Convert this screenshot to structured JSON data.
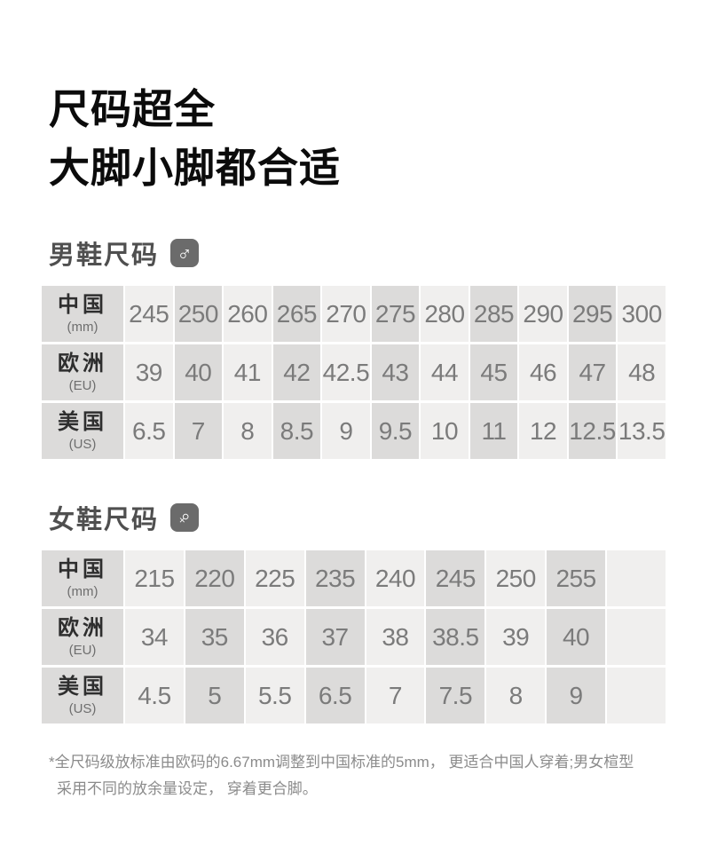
{
  "header": {
    "title_line1": "尺码超全",
    "title_line2": "大脚小脚都合适"
  },
  "colors": {
    "cell_light": "#f0efee",
    "cell_dark": "#dcdbda",
    "label_bg": "#dcdbda",
    "badge_bg": "#6b6b6b",
    "number_text": "#7b7b7b",
    "title_text": "#0b0b0b",
    "section_text": "#4f4f4f",
    "footnote_text": "#8b8b8b"
  },
  "sections": [
    {
      "id": "men",
      "heading": "男鞋尺码",
      "icon": "male-icon",
      "icon_glyph": "♂",
      "table": {
        "row_labels": [
          {
            "main": "中国",
            "sub": "(mm)"
          },
          {
            "main": "欧洲",
            "sub": "(EU)"
          },
          {
            "main": "美国",
            "sub": "(US)"
          }
        ],
        "rows": [
          [
            "245",
            "250",
            "260",
            "265",
            "270",
            "275",
            "280",
            "285",
            "290",
            "295",
            "300"
          ],
          [
            "39",
            "40",
            "41",
            "42",
            "42.5",
            "43",
            "44",
            "45",
            "46",
            "47",
            "48"
          ],
          [
            "6.5",
            "7",
            "8",
            "8.5",
            "9",
            "9.5",
            "10",
            "11",
            "12",
            "12.5",
            "13.5"
          ]
        ]
      }
    },
    {
      "id": "women",
      "heading": "女鞋尺码",
      "icon": "female-icon",
      "icon_glyph": "♀",
      "table": {
        "row_labels": [
          {
            "main": "中国",
            "sub": "(mm)"
          },
          {
            "main": "欧洲",
            "sub": "(EU)"
          },
          {
            "main": "美国",
            "sub": "(US)"
          }
        ],
        "rows": [
          [
            "215",
            "220",
            "225",
            "235",
            "240",
            "245",
            "250",
            "255",
            ""
          ],
          [
            "34",
            "35",
            "36",
            "37",
            "38",
            "38.5",
            "39",
            "40",
            ""
          ],
          [
            "4.5",
            "5",
            "5.5",
            "6.5",
            "7",
            "7.5",
            "8",
            "9",
            ""
          ]
        ]
      }
    }
  ],
  "footnote": {
    "line1": "*全尺码级放标准由欧码的6.67mm调整到中国标准的5mm， 更适合中国人穿着;男女楦型",
    "line2": "采用不同的放余量设定， 穿着更合脚。"
  }
}
